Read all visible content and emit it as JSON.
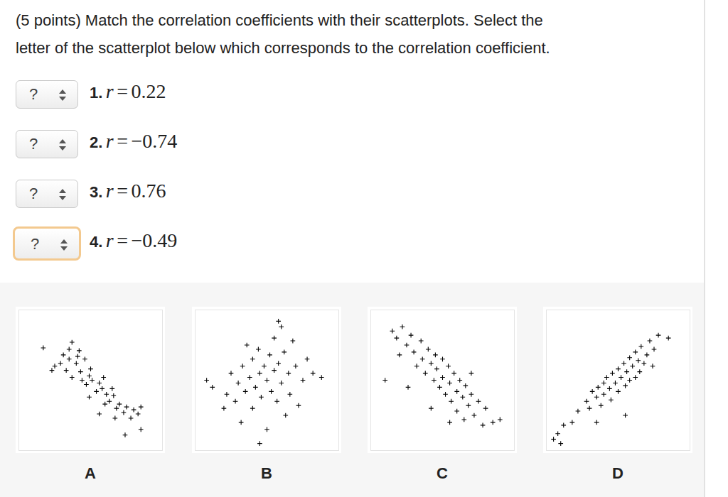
{
  "question": {
    "lines": [
      "(5 points) Match the correlation coefficients with their scatterplots. Select the",
      "letter of the scatterplot below which corresponds to the correlation coefficient."
    ]
  },
  "items": [
    {
      "select": "?",
      "number": "1.",
      "variable": "r",
      "relation": "=",
      "value": 0.22,
      "focused": false
    },
    {
      "select": "?",
      "number": "2.",
      "variable": "r",
      "relation": "=",
      "value": {
        "value": -0.74,
        "label": "−0.74"
      },
      "focused": false
    },
    {
      "select": "?",
      "number": "3.",
      "variable": "r",
      "relation": "=",
      "value": 0.76,
      "focused": false
    },
    {
      "select": "?",
      "number": "4.",
      "variable": "r",
      "relation": "=",
      "value": {
        "value": -0.49,
        "label": "−0.49"
      },
      "focused": true
    }
  ],
  "chart_data": [
    {
      "type": "scatter",
      "title": "A",
      "marker": "plus",
      "color": "#000000",
      "tick_labels": false,
      "xlim": [
        0,
        100
      ],
      "ylim": [
        0,
        100
      ],
      "x": [
        17,
        37,
        42,
        31,
        35,
        40,
        46,
        25,
        33,
        43,
        49,
        37,
        51,
        56,
        47,
        58,
        61,
        54,
        66,
        63,
        70,
        68,
        75,
        80,
        85,
        73,
        56,
        78,
        85,
        74,
        29,
        35,
        41,
        50,
        59,
        44,
        65,
        49,
        60,
        23,
        67,
        83
      ],
      "y": [
        73,
        77,
        71,
        68,
        65,
        62,
        65,
        60,
        57,
        56,
        53,
        52,
        50,
        48,
        47,
        44,
        40,
        42,
        39,
        35,
        33,
        30,
        31,
        29,
        31,
        27,
        26,
        23,
        15,
        11,
        62,
        72,
        67,
        58,
        52,
        50,
        44,
        38,
        33,
        57,
        23,
        26
      ]
    },
    {
      "type": "scatter",
      "title": "B",
      "marker": "plus",
      "color": "#000000",
      "tick_labels": false,
      "xlim": [
        0,
        100
      ],
      "ylim": [
        0,
        100
      ],
      "x": [
        8,
        12,
        20,
        22,
        25,
        28,
        30,
        32,
        33,
        35,
        38,
        40,
        40,
        42,
        44,
        45,
        46,
        48,
        50,
        50,
        52,
        53,
        55,
        55,
        57,
        58,
        60,
        60,
        62,
        63,
        65,
        66,
        68,
        70,
        72,
        75,
        78,
        82,
        88,
        45,
        36,
        58
      ],
      "y": [
        50,
        45,
        30,
        40,
        55,
        35,
        48,
        20,
        60,
        42,
        52,
        65,
        30,
        45,
        72,
        55,
        38,
        60,
        50,
        15,
        68,
        42,
        80,
        57,
        35,
        62,
        48,
        88,
        70,
        25,
        55,
        40,
        78,
        60,
        32,
        50,
        65,
        55,
        52,
        5,
        75,
        92
      ]
    },
    {
      "type": "scatter",
      "title": "C",
      "marker": "plus",
      "color": "#000000",
      "tick_labels": false,
      "xlim": [
        0,
        100
      ],
      "ylim": [
        0,
        100
      ],
      "x": [
        15,
        18,
        22,
        25,
        20,
        28,
        30,
        32,
        35,
        36,
        38,
        40,
        42,
        44,
        45,
        46,
        48,
        50,
        50,
        52,
        54,
        55,
        56,
        58,
        60,
        60,
        62,
        64,
        65,
        66,
        68,
        70,
        72,
        75,
        78,
        80,
        85,
        90,
        10,
        26,
        42,
        55,
        70
      ],
      "y": [
        85,
        80,
        88,
        75,
        68,
        82,
        70,
        60,
        78,
        65,
        55,
        72,
        62,
        50,
        68,
        58,
        45,
        65,
        52,
        40,
        60,
        48,
        35,
        55,
        42,
        28,
        50,
        38,
        22,
        46,
        32,
        40,
        25,
        35,
        18,
        30,
        20,
        22,
        50,
        45,
        30,
        20,
        55
      ]
    },
    {
      "type": "scatter",
      "title": "D",
      "marker": "plus",
      "color": "#000000",
      "tick_labels": false,
      "xlim": [
        0,
        100
      ],
      "ylim": [
        0,
        100
      ],
      "x": [
        5,
        8,
        10,
        12,
        18,
        22,
        28,
        30,
        32,
        35,
        36,
        38,
        40,
        40,
        42,
        44,
        45,
        46,
        48,
        50,
        50,
        52,
        54,
        55,
        56,
        58,
        58,
        60,
        62,
        62,
        64,
        65,
        66,
        68,
        70,
        72,
        74,
        75,
        78,
        55,
        35,
        85
      ],
      "y": [
        8,
        12,
        5,
        18,
        20,
        28,
        35,
        30,
        42,
        38,
        45,
        32,
        48,
        40,
        52,
        44,
        36,
        55,
        48,
        58,
        42,
        52,
        62,
        46,
        56,
        66,
        50,
        60,
        70,
        52,
        64,
        56,
        74,
        62,
        68,
        78,
        60,
        72,
        82,
        25,
        20,
        80
      ]
    }
  ]
}
